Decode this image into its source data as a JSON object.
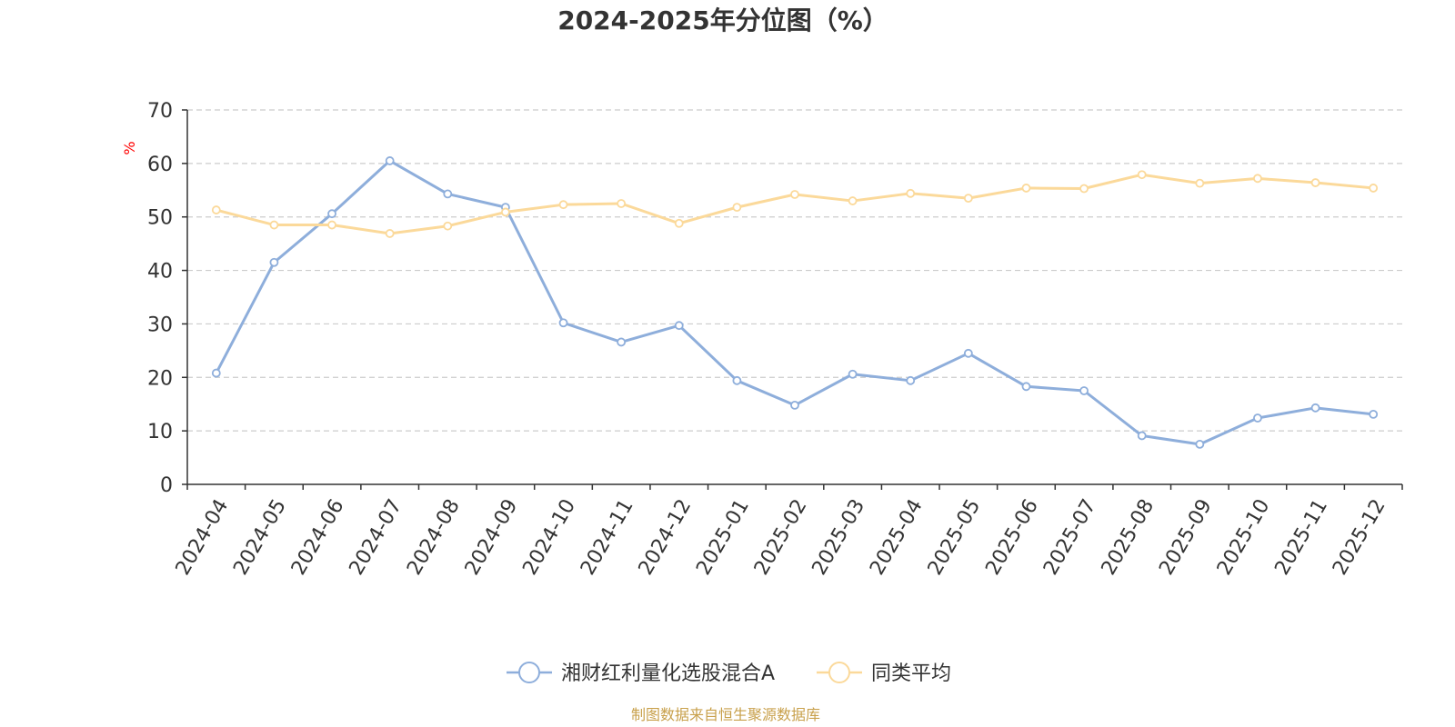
{
  "chart_data": {
    "type": "line",
    "title": "2024-2025年分位图（%）",
    "ylabel": "%",
    "xlabel": "",
    "ylim": [
      0,
      70
    ],
    "yticks": [
      0,
      10,
      20,
      30,
      40,
      50,
      60,
      70
    ],
    "grid": true,
    "legend_position": "bottom",
    "categories": [
      "2024-04",
      "2024-05",
      "2024-06",
      "2024-07",
      "2024-08",
      "2024-09",
      "2024-10",
      "2024-11",
      "2024-12",
      "2025-01",
      "2025-02",
      "2025-03",
      "2025-04",
      "2025-05",
      "2025-06",
      "2025-07",
      "2025-08",
      "2025-09",
      "2025-10",
      "2025-11",
      "2025-12"
    ],
    "series": [
      {
        "name": "湘财红利量化选股混合A",
        "color": "#8eaedb",
        "values": [
          20.8,
          41.5,
          50.6,
          60.5,
          54.3,
          51.8,
          30.2,
          26.6,
          29.7,
          19.4,
          14.8,
          20.6,
          19.4,
          24.5,
          18.3,
          17.5,
          9.1,
          7.5,
          12.4,
          14.3,
          13.1
        ]
      },
      {
        "name": "同类平均",
        "color": "#fbd99a",
        "values": [
          51.3,
          48.5,
          48.5,
          46.9,
          48.3,
          50.9,
          52.3,
          52.5,
          48.8,
          51.8,
          54.2,
          53.0,
          54.4,
          53.5,
          55.4,
          55.3,
          57.9,
          56.3,
          57.2,
          56.4,
          55.4
        ]
      }
    ]
  },
  "footer": {
    "source": "制图数据来自恒生聚源数据库"
  },
  "colors": {
    "axis": "#333333",
    "grid": "#cccccc",
    "unit": "#ff0000",
    "source": "#c8a04b"
  }
}
